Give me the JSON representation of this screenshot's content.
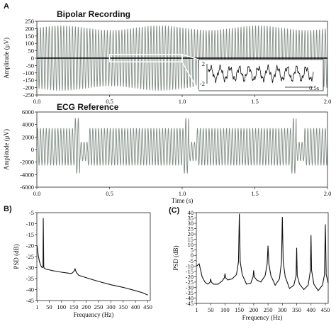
{
  "panel_labels": {
    "a": "A",
    "b": "B)",
    "c": "(C)"
  },
  "chart_data": [
    {
      "id": "bipolar",
      "type": "line",
      "title": "Bipolar Recording",
      "ylabel": "Amplitude (μV)",
      "xlabel": "",
      "xlim": [
        0,
        2.0
      ],
      "ylim": [
        -250,
        250
      ],
      "xticks": [
        "0.0",
        "0.5",
        "1.0",
        "1.5",
        "2.0"
      ],
      "yticks": [
        "250",
        "200",
        "150",
        "100",
        "50",
        "0",
        "-50",
        "-100",
        "-150",
        "-200",
        "-250"
      ],
      "series": [
        {
          "color": "#7f8c85",
          "style": "dense oscillation",
          "envelope": [
            -220,
            220
          ],
          "frequency_hz": 50
        },
        {
          "color": "#000000",
          "style": "baseline",
          "value": 0
        }
      ],
      "zoom_box": {
        "x": [
          0.5,
          1.0
        ],
        "y": [
          -25,
          25
        ]
      },
      "inset": {
        "ylim": [
          -2,
          2
        ],
        "yticks": [
          "2",
          "-2"
        ],
        "scale_label": "0.5s"
      }
    },
    {
      "id": "ecg",
      "type": "line",
      "title": "ECG Reference",
      "ylabel": "Amplitude (μV)",
      "xlabel": "Time (s)",
      "xlim": [
        0,
        2.0
      ],
      "ylim": [
        -6000,
        6000
      ],
      "xticks": [
        "0.0",
        "0.5",
        "1.0",
        "1.5",
        "2.0"
      ],
      "yticks": [
        "6000",
        "4000",
        "2000",
        "0",
        "-2000",
        "-4000",
        "-6000"
      ],
      "series": [
        {
          "color": "#7f8c85",
          "style": "dense oscillation",
          "envelope": [
            -2500,
            3400
          ],
          "frequency_hz": 50,
          "qrs_times_s": [
            0.27,
            1.02,
            1.76
          ],
          "qrs_peak": 5000,
          "qrs_trough": -3800
        }
      ]
    },
    {
      "id": "psd_b",
      "type": "line",
      "title": "",
      "ylabel": "PSD (dB)",
      "xlabel": "Frequency (Hz)",
      "xlim": [
        0,
        460
      ],
      "ylim": [
        -45,
        -5
      ],
      "xticks": [
        "1",
        "50",
        "100",
        "150",
        "200",
        "250",
        "300",
        "350",
        "400",
        "450"
      ],
      "xtick_values": [
        1,
        50,
        100,
        150,
        200,
        250,
        300,
        350,
        400,
        450
      ],
      "yticks": [
        "-5",
        "-10",
        "-15",
        "-20",
        "-25",
        "-30",
        "-35",
        "-40",
        "-45"
      ],
      "series": [
        {
          "color": "#111111",
          "x": [
            1,
            5,
            10,
            14,
            18,
            20,
            22,
            25,
            26,
            28,
            30,
            35,
            40,
            50,
            60,
            80,
            100,
            120,
            140,
            150,
            155,
            160,
            170,
            200,
            250,
            300,
            350,
            400,
            430,
            450
          ],
          "y": [
            -20,
            -24,
            -27,
            -28.5,
            -29.5,
            -29.8,
            -30,
            -29.8,
            -7.5,
            -29.8,
            -30.2,
            -30.6,
            -30.8,
            -31,
            -31.3,
            -31.7,
            -32.1,
            -32.4,
            -32.7,
            -31.8,
            -30.6,
            -32.2,
            -33.5,
            -34.6,
            -36.3,
            -37.8,
            -39,
            -40.5,
            -41.5,
            -42.5
          ]
        }
      ]
    },
    {
      "id": "psd_c",
      "type": "line",
      "title": "",
      "ylabel": "PSD (dB)",
      "xlabel": "Frequency (Hz)",
      "xlim": [
        0,
        460
      ],
      "ylim": [
        -45,
        40
      ],
      "xticks": [
        "1",
        "50",
        "100",
        "150",
        "200",
        "250",
        "300",
        "350",
        "400",
        "450"
      ],
      "xtick_values": [
        1,
        50,
        100,
        150,
        200,
        250,
        300,
        350,
        400,
        450
      ],
      "yticks": [
        "40",
        "35",
        "30",
        "25",
        "20",
        "15",
        "10",
        "5",
        "0",
        "-5",
        "-10",
        "-15",
        "-20",
        "-25",
        "-30",
        "-35",
        "-40",
        "-45"
      ],
      "series": [
        {
          "color": "#111111",
          "x": [
            1,
            10,
            20,
            30,
            40,
            48,
            50,
            52,
            60,
            75,
            90,
            98,
            100,
            102,
            110,
            125,
            140,
            147,
            150,
            153,
            160,
            175,
            190,
            198,
            200,
            202,
            210,
            225,
            240,
            247,
            250,
            253,
            260,
            275,
            290,
            297,
            300,
            303,
            310,
            325,
            340,
            348,
            350,
            352,
            360,
            375,
            390,
            398,
            400,
            402,
            410,
            425,
            440,
            447,
            450,
            453,
            460
          ],
          "y": [
            -10,
            -8,
            -20,
            -25,
            -27,
            -25,
            -22,
            -25,
            -27,
            -27,
            -24,
            -21,
            -17,
            -21,
            -23,
            -22,
            -18,
            -6,
            39,
            -6,
            -18,
            -27,
            -26,
            -20,
            -14,
            -20,
            -23,
            -25,
            -19,
            -8,
            9,
            -8,
            -19,
            -28,
            -22,
            -6,
            36,
            -6,
            -20,
            -31,
            -28,
            -19,
            7,
            -19,
            -27,
            -32,
            -28,
            -14,
            19,
            -14,
            -27,
            -33,
            -28,
            -18,
            29,
            -18,
            -26
          ]
        }
      ]
    }
  ]
}
